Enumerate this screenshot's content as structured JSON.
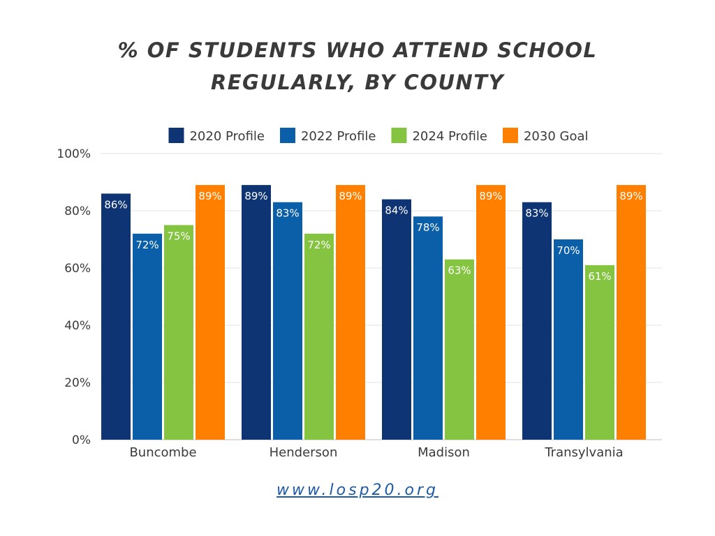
{
  "chart_data": {
    "type": "bar",
    "title_lines": [
      "% OF STUDENTS WHO ATTEND SCHOOL",
      "REGULARLY, BY COUNTY"
    ],
    "categories": [
      "Buncombe",
      "Henderson",
      "Madison",
      "Transylvania"
    ],
    "series": [
      {
        "name": "2020 Profile",
        "color": "#0f3474",
        "values": [
          86,
          89,
          84,
          83
        ]
      },
      {
        "name": "2022 Profile",
        "color": "#0a5fa8",
        "values": [
          72,
          83,
          78,
          70
        ]
      },
      {
        "name": "2024 Profile",
        "color": "#85c441",
        "values": [
          75,
          72,
          63,
          61
        ]
      },
      {
        "name": "2030 Goal",
        "color": "#ff8000",
        "values": [
          89,
          89,
          89,
          89
        ]
      }
    ],
    "value_suffix": "%",
    "y_ticks": [
      "0%",
      "20%",
      "40%",
      "60%",
      "80%",
      "100%"
    ],
    "ylim": [
      0,
      100
    ],
    "grid": true,
    "legend_position": "top-center"
  },
  "footer": {
    "url": "www.losp20.org"
  }
}
